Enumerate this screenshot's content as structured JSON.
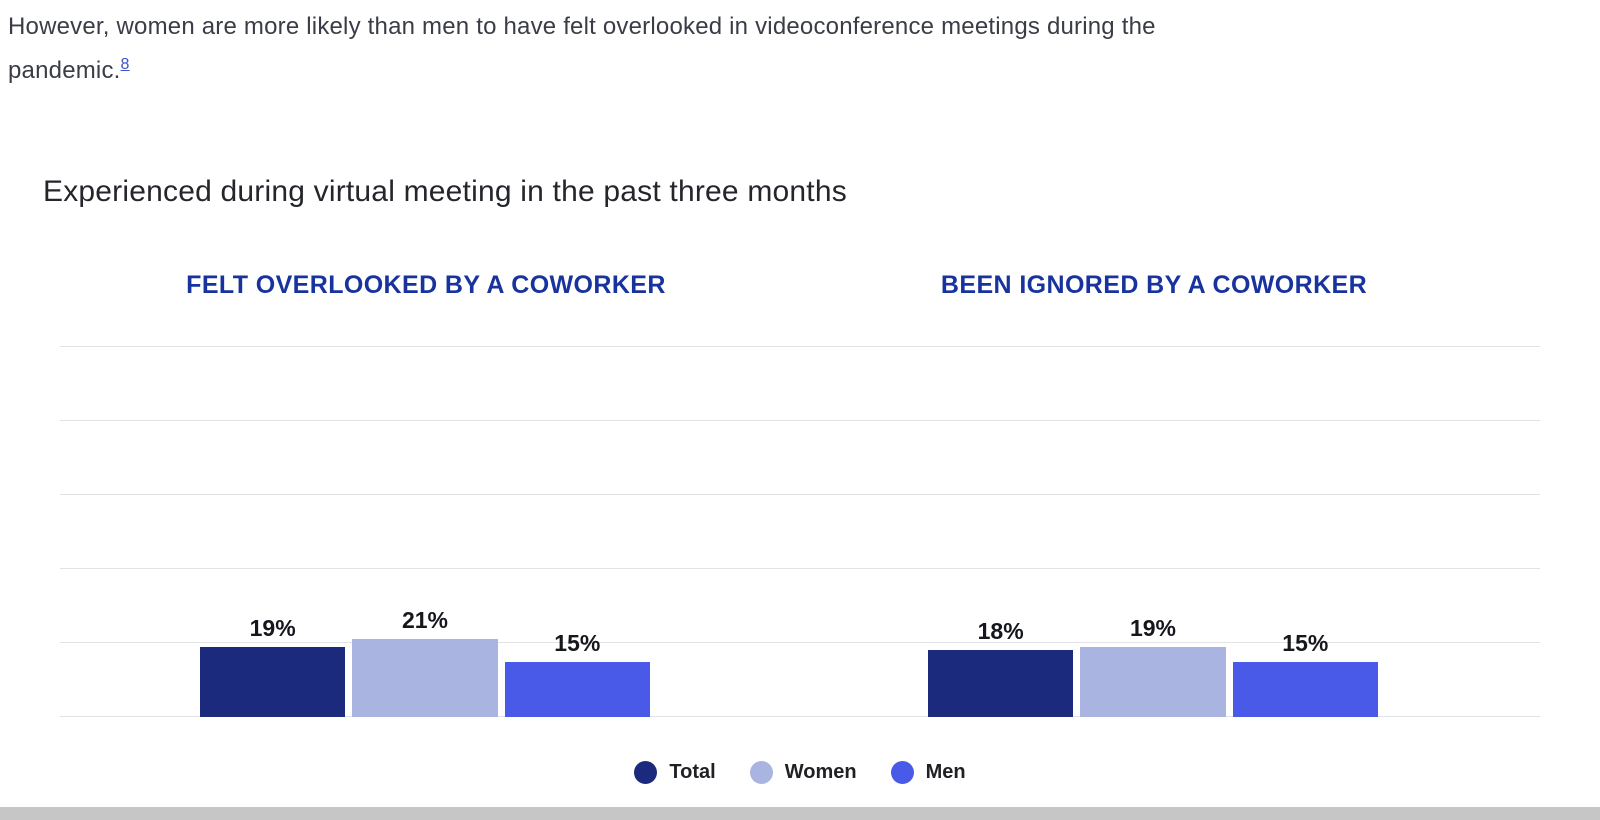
{
  "intro": {
    "text": "However, women are more likely than men to have felt overlooked in videoconference meetings during the pandemic.",
    "footnote": "8"
  },
  "chart": {
    "title": "Experienced during virtual meeting in the past three months"
  },
  "colors": {
    "group_heading": "#18339e",
    "footnote_link": "#3d52cc",
    "gridline": "#e2e3e6"
  },
  "chart_data": {
    "type": "bar",
    "title": "Experienced during virtual meeting in the past three months",
    "categories": [
      "FELT OVERLOOKED BY A COWORKER",
      "BEEN IGNORED BY A COWORKER"
    ],
    "series": [
      {
        "name": "Total",
        "values": [
          19,
          18
        ],
        "color": "#1b2a7d"
      },
      {
        "name": "Women",
        "values": [
          21,
          19
        ],
        "color": "#aab4e0"
      },
      {
        "name": "Men",
        "values": [
          15,
          15
        ],
        "color": "#4a5ae8"
      }
    ],
    "value_labels": [
      [
        "19%",
        "21%",
        "15%"
      ],
      [
        "18%",
        "19%",
        "15%"
      ]
    ],
    "unit": "%",
    "ylim": [
      0,
      100
    ],
    "gridlines": [
      0,
      20,
      40,
      60,
      80,
      100
    ],
    "grid": true,
    "legend_position": "bottom",
    "legend": [
      "Total",
      "Women",
      "Men"
    ]
  }
}
